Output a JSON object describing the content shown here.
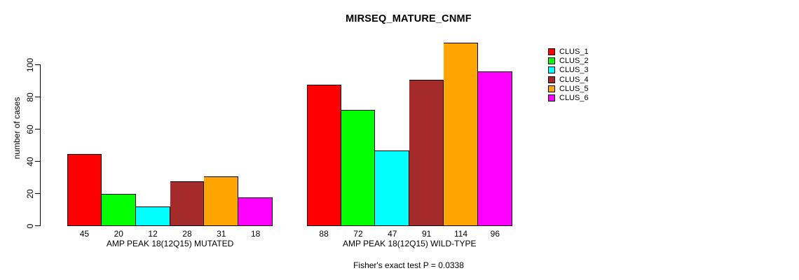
{
  "chart_data": {
    "type": "bar",
    "title": "MIRSEQ_MATURE_CNMF",
    "xlabel": "",
    "ylabel": "number of cases",
    "yticks": [
      0,
      20,
      40,
      60,
      80,
      100
    ],
    "ylim": [
      0,
      114
    ],
    "grid": false,
    "legend_position": "top-right",
    "series_names": [
      "CLUS_1",
      "CLUS_2",
      "CLUS_3",
      "CLUS_4",
      "CLUS_5",
      "CLUS_6"
    ],
    "series_colors": [
      "#FF0000",
      "#00FF00",
      "#00FFFF",
      "#A52A2A",
      "#FFA500",
      "#FF00FF"
    ],
    "groups": [
      {
        "label": "AMP PEAK 18(12Q15) MUTATED",
        "values": [
          45,
          20,
          12,
          28,
          31,
          18
        ]
      },
      {
        "label": "AMP PEAK 18(12Q15) WILD-TYPE",
        "values": [
          88,
          72,
          47,
          91,
          114,
          96
        ]
      }
    ],
    "annotation": "Fisher's exact test P = 0.0338"
  }
}
